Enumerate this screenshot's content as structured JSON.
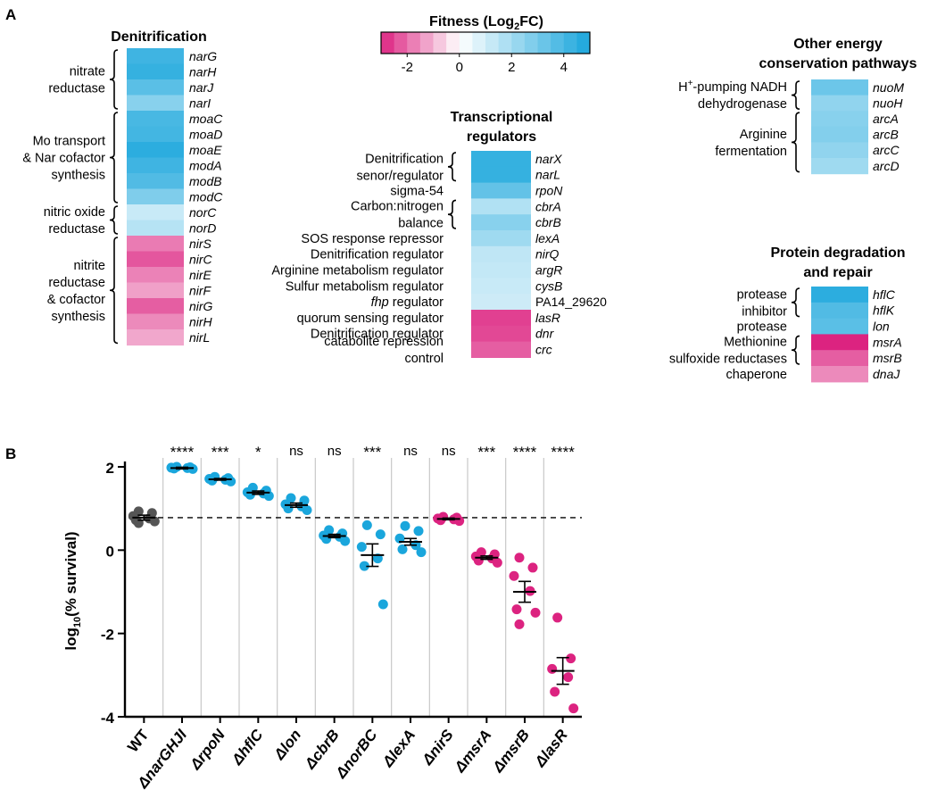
{
  "panel_a": {
    "label": "A",
    "legend": {
      "title_prefix": "Fitness (Log",
      "title_sub": "2",
      "title_suffix": "FC)",
      "min": -3,
      "max": 5,
      "ticks": [
        -2,
        0,
        2,
        4
      ],
      "tick_labels": [
        "-2",
        "0",
        "2",
        "4"
      ]
    },
    "colors": {
      "negative": "#dc2380",
      "zero": "#ffffff",
      "positive": "#1aa6dc",
      "bracket": "#000000"
    },
    "groups": [
      {
        "title_lines": [
          "Denitrification"
        ],
        "subgroups": [
          {
            "label_lines": [
              "nitrate",
              "reductase"
            ],
            "bracket": true,
            "genes": [
              {
                "name": "narG",
                "value": 4.2
              },
              {
                "name": "narH",
                "value": 4.4
              },
              {
                "name": "narJ",
                "value": 3.6
              },
              {
                "name": "narI",
                "value": 2.6
              }
            ]
          },
          {
            "label_lines": [
              "Mo transport",
              "& Nar cofactor",
              "synthesis"
            ],
            "bracket": true,
            "genes": [
              {
                "name": "moaC",
                "value": 4.0
              },
              {
                "name": "moaD",
                "value": 4.1
              },
              {
                "name": "moaE",
                "value": 4.6
              },
              {
                "name": "modA",
                "value": 4.2
              },
              {
                "name": "modB",
                "value": 3.8
              },
              {
                "name": "modC",
                "value": 2.8
              }
            ]
          },
          {
            "label_lines": [
              "nitric oxide",
              "reductase"
            ],
            "bracket": true,
            "genes": [
              {
                "name": "norC",
                "value": 1.2
              },
              {
                "name": "norD",
                "value": 1.6
              }
            ]
          },
          {
            "label_lines": [
              "nitrite",
              "reductase",
              "& cofactor",
              "synthesis"
            ],
            "bracket": true,
            "genes": [
              {
                "name": "nirS",
                "value": -1.8
              },
              {
                "name": "nirC",
                "value": -2.3
              },
              {
                "name": "nirE",
                "value": -1.7
              },
              {
                "name": "nirF",
                "value": -1.3
              },
              {
                "name": "nirG",
                "value": -2.2
              },
              {
                "name": "nirH",
                "value": -1.6
              },
              {
                "name": "nirL",
                "value": -1.2
              }
            ]
          }
        ]
      },
      {
        "title_lines": [
          "Transcriptional",
          "regulators"
        ],
        "subgroups": [
          {
            "label_lines": [
              "Denitrification",
              "senor/regulator"
            ],
            "bracket": true,
            "genes": [
              {
                "name": "narX",
                "value": 4.4
              },
              {
                "name": "narL",
                "value": 4.4
              }
            ]
          },
          {
            "label_lines": [
              "sigma-54"
            ],
            "bracket": false,
            "genes": [
              {
                "name": "rpoN",
                "value": 3.4
              }
            ]
          },
          {
            "label_lines": [
              "Carbon:nitrogen",
              "balance"
            ],
            "bracket": true,
            "genes": [
              {
                "name": "cbrA",
                "value": 1.7
              },
              {
                "name": "cbrB",
                "value": 2.6
              }
            ]
          },
          {
            "label_lines": [
              "SOS response repressor"
            ],
            "bracket": false,
            "genes": [
              {
                "name": "lexA",
                "value": 2.1
              }
            ]
          },
          {
            "label_lines": [
              "Denitrification regulator"
            ],
            "bracket": false,
            "genes": [
              {
                "name": "nirQ",
                "value": 1.4
              }
            ]
          },
          {
            "label_lines": [
              "Arginine metabolism regulator"
            ],
            "bracket": false,
            "genes": [
              {
                "name": "argR",
                "value": 1.3
              }
            ]
          },
          {
            "label_lines": [
              "Sulfur metabolism regulator"
            ],
            "bracket": false,
            "genes": [
              {
                "name": "cysB",
                "value": 1.2
              }
            ]
          },
          {
            "label_lines": [
              "fhp regulator"
            ],
            "bracket": false,
            "italic_first_word": true,
            "genes": [
              {
                "name": "PA14_29620",
                "value": 1.1,
                "italic": false
              }
            ]
          },
          {
            "label_lines": [
              "quorum sensing regulator"
            ],
            "bracket": false,
            "genes": [
              {
                "name": "lasR",
                "value": -2.6
              }
            ]
          },
          {
            "label_lines": [
              "Denitrification regulator"
            ],
            "bracket": false,
            "genes": [
              {
                "name": "dnr",
                "value": -2.5
              }
            ]
          },
          {
            "label_lines": [
              "catabolite repression",
              "control"
            ],
            "bracket": false,
            "genes": [
              {
                "name": "crc",
                "value": -2.2
              }
            ]
          }
        ]
      },
      {
        "title_lines": [
          "Other energy",
          "conservation pathways"
        ],
        "subgroups": [
          {
            "label_lines": [
              "H+-pumping NADH",
              "dehydrogenase"
            ],
            "bracket": true,
            "genes": [
              {
                "name": "nuoM",
                "value": 3.2
              },
              {
                "name": "nuoH",
                "value": 2.4
              }
            ]
          },
          {
            "label_lines": [
              "Arginine",
              "fermentation"
            ],
            "bracket": true,
            "genes": [
              {
                "name": "arcA",
                "value": 2.6
              },
              {
                "name": "arcB",
                "value": 2.7
              },
              {
                "name": "arcC",
                "value": 2.4
              },
              {
                "name": "arcD",
                "value": 2.1
              }
            ]
          }
        ]
      },
      {
        "title_lines": [
          "Protein degradation",
          "and repair"
        ],
        "subgroups": [
          {
            "label_lines": [
              "protease",
              "inhibitor"
            ],
            "bracket": true,
            "genes": [
              {
                "name": "hflC",
                "value": 4.6
              },
              {
                "name": "hflK",
                "value": 3.8
              }
            ]
          },
          {
            "label_lines": [
              "protease"
            ],
            "bracket": false,
            "genes": [
              {
                "name": "lon",
                "value": 3.6
              }
            ]
          },
          {
            "label_lines": [
              "Methionine",
              "sulfoxide reductases"
            ],
            "bracket": true,
            "genes": [
              {
                "name": "msrA",
                "value": -3.0
              },
              {
                "name": "msrB",
                "value": -2.2
              }
            ]
          },
          {
            "label_lines": [
              "chaperone"
            ],
            "bracket": false,
            "genes": [
              {
                "name": "dnaJ",
                "value": -1.6
              }
            ]
          }
        ]
      }
    ]
  },
  "chart_data": {
    "type": "scatter",
    "panel_label": "B",
    "ylabel_prefix": "log",
    "ylabel_sub": "10",
    "ylabel_suffix": "(% survival)",
    "ylim": [
      -4,
      2
    ],
    "yticks": [
      -4,
      -2,
      0,
      2
    ],
    "reference_line": 0.78,
    "point_colors": {
      "wt": "#555555",
      "up": "#1aa6dc",
      "down": "#dc2380"
    },
    "categories": [
      {
        "label": "WT",
        "italic": false,
        "color": "wt",
        "significance": "",
        "mean": 0.78,
        "sem": 0.06,
        "points": [
          0.93,
          0.89,
          0.82,
          0.76,
          0.72,
          0.69,
          0.65
        ]
      },
      {
        "label": "ΔnarGHJI",
        "italic": true,
        "color": "up",
        "significance": "****",
        "mean": 1.97,
        "sem": 0.02,
        "points": [
          2.0,
          1.99,
          1.98,
          1.97,
          1.96,
          1.95
        ]
      },
      {
        "label": "ΔrpoN",
        "italic": true,
        "color": "up",
        "significance": "***",
        "mean": 1.7,
        "sem": 0.02,
        "points": [
          1.76,
          1.73,
          1.71,
          1.69,
          1.67,
          1.65
        ]
      },
      {
        "label": "ΔhflC",
        "italic": true,
        "color": "up",
        "significance": "*",
        "mean": 1.38,
        "sem": 0.04,
        "points": [
          1.5,
          1.43,
          1.39,
          1.36,
          1.33,
          1.3
        ]
      },
      {
        "label": "Δlon",
        "italic": true,
        "color": "up",
        "significance": "ns",
        "mean": 1.08,
        "sem": 0.05,
        "points": [
          1.25,
          1.19,
          1.1,
          1.05,
          1.0,
          0.96
        ]
      },
      {
        "label": "ΔcbrB",
        "italic": true,
        "color": "up",
        "significance": "ns",
        "mean": 0.34,
        "sem": 0.04,
        "points": [
          0.48,
          0.4,
          0.35,
          0.32,
          0.27,
          0.22
        ]
      },
      {
        "label": "ΔnorBC",
        "italic": true,
        "color": "up",
        "significance": "***",
        "mean": -0.12,
        "sem": 0.27,
        "points": [
          0.6,
          0.38,
          0.08,
          -0.2,
          -0.38,
          -1.3
        ]
      },
      {
        "label": "ΔlexA",
        "italic": true,
        "color": "up",
        "significance": "ns",
        "mean": 0.2,
        "sem": 0.08,
        "points": [
          0.58,
          0.46,
          0.28,
          0.12,
          0.02,
          -0.05
        ]
      },
      {
        "label": "ΔnirS",
        "italic": true,
        "color": "down",
        "significance": "ns",
        "mean": 0.75,
        "sem": 0.02,
        "points": [
          0.8,
          0.78,
          0.76,
          0.74,
          0.72,
          0.7
        ]
      },
      {
        "label": "ΔmsrA",
        "italic": true,
        "color": "down",
        "significance": "***",
        "mean": -0.18,
        "sem": 0.04,
        "points": [
          -0.05,
          -0.1,
          -0.15,
          -0.2,
          -0.25,
          -0.3
        ]
      },
      {
        "label": "ΔmsrB",
        "italic": true,
        "color": "down",
        "significance": "****",
        "mean": -1.0,
        "sem": 0.25,
        "points": [
          -0.18,
          -0.42,
          -0.62,
          -0.98,
          -1.42,
          -1.5,
          -1.78
        ]
      },
      {
        "label": "ΔlasR",
        "italic": true,
        "color": "down",
        "significance": "****",
        "mean": -2.9,
        "sem": 0.32,
        "points": [
          -1.62,
          -2.6,
          -2.85,
          -3.05,
          -3.4,
          -3.8
        ]
      }
    ]
  }
}
